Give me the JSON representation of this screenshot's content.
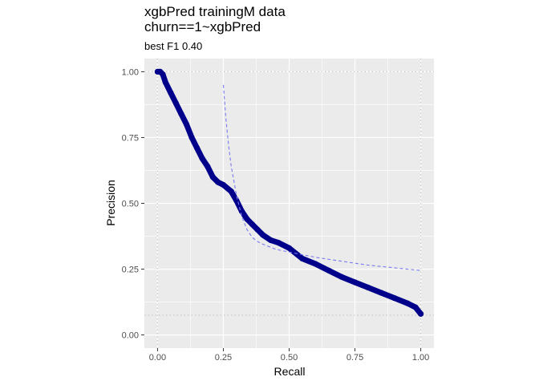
{
  "chart_data": {
    "type": "line",
    "title_lines": [
      "xgbPred trainingM data",
      "churn==1~xgbPred"
    ],
    "subtitle": "best F1 0.40",
    "xlabel": "Recall",
    "ylabel": "Precision",
    "xlim": [
      -0.05,
      1.05
    ],
    "ylim": [
      -0.05,
      1.05
    ],
    "x_ticks": [
      0.0,
      0.25,
      0.5,
      0.75,
      1.0
    ],
    "x_tick_labels": [
      "0.00",
      "0.25",
      "0.50",
      "0.75",
      "1.00"
    ],
    "y_ticks": [
      0.0,
      0.25,
      0.5,
      0.75,
      1.0
    ],
    "y_tick_labels": [
      "0.00",
      "0.25",
      "0.50",
      "0.75",
      "1.00"
    ],
    "grid": true,
    "panel_background": "#ebebeb",
    "series": [
      {
        "style": "thick-points-line",
        "color": "#00008b",
        "x": [
          0.0,
          0.01,
          0.02,
          0.03,
          0.05,
          0.07,
          0.09,
          0.11,
          0.13,
          0.15,
          0.17,
          0.19,
          0.21,
          0.23,
          0.25,
          0.28,
          0.3,
          0.32,
          0.34,
          0.36,
          0.38,
          0.4,
          0.43,
          0.46,
          0.5,
          0.55,
          0.6,
          0.65,
          0.7,
          0.75,
          0.8,
          0.85,
          0.9,
          0.95,
          0.98,
          1.0
        ],
        "y": [
          1.0,
          1.0,
          0.99,
          0.96,
          0.92,
          0.88,
          0.84,
          0.8,
          0.75,
          0.71,
          0.67,
          0.64,
          0.6,
          0.58,
          0.57,
          0.545,
          0.51,
          0.47,
          0.44,
          0.42,
          0.4,
          0.38,
          0.36,
          0.35,
          0.33,
          0.29,
          0.27,
          0.245,
          0.22,
          0.2,
          0.18,
          0.16,
          0.14,
          0.12,
          0.105,
          0.08
        ]
      },
      {
        "style": "dashed-line",
        "color": "#7b7bf0",
        "x": [
          0.25,
          0.26,
          0.27,
          0.28,
          0.3,
          0.32,
          0.34,
          0.36,
          0.38,
          0.4,
          0.45,
          0.5,
          0.55,
          0.6,
          0.7,
          0.8,
          0.9,
          1.0
        ],
        "y": [
          0.95,
          0.82,
          0.72,
          0.64,
          0.53,
          0.45,
          0.4,
          0.37,
          0.355,
          0.345,
          0.325,
          0.315,
          0.305,
          0.295,
          0.28,
          0.265,
          0.255,
          0.245
        ]
      }
    ],
    "reference_lines": {
      "horizontal": [
        1.0,
        0.075
      ],
      "vertical": [
        0.0,
        1.0
      ],
      "style": "dotted",
      "color": "#c8c8c8"
    }
  }
}
